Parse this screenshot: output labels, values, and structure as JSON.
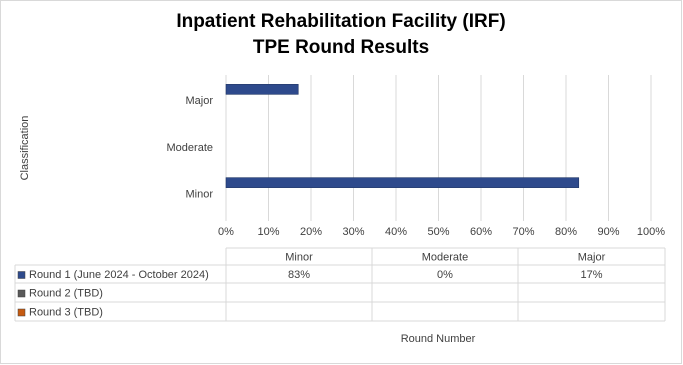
{
  "chart_data": {
    "type": "bar",
    "orientation": "horizontal",
    "title": "Inpatient Rehabilitation Facility (IRF)",
    "subtitle": "TPE Round Results",
    "y_label": "Classification",
    "x_label": "Round Number",
    "categories": [
      "Minor",
      "Moderate",
      "Major"
    ],
    "series": [
      {
        "name": "Round 1 (June 2024 - October 2024)",
        "color": "#2e4a8c",
        "values": [
          83,
          0,
          17
        ],
        "value_labels": [
          "83%",
          "0%",
          "17%"
        ]
      },
      {
        "name": "Round 2 (TBD)",
        "color": "#595959",
        "values": [
          null,
          null,
          null
        ]
      },
      {
        "name": "Round 3 (TBD)",
        "color": "#c55a11",
        "values": [
          null,
          null,
          null
        ]
      }
    ],
    "xlim": [
      0,
      100
    ],
    "xticks": [
      {
        "value": 0,
        "label": "0%"
      },
      {
        "value": 10,
        "label": "10%"
      },
      {
        "value": 20,
        "label": "20%"
      },
      {
        "value": 30,
        "label": "30%"
      },
      {
        "value": 40,
        "label": "40%"
      },
      {
        "value": 50,
        "label": "50%"
      },
      {
        "value": 60,
        "label": "60%"
      },
      {
        "value": 70,
        "label": "70%"
      },
      {
        "value": 80,
        "label": "80%"
      },
      {
        "value": 90,
        "label": "90%"
      },
      {
        "value": 100,
        "label": "100%"
      }
    ],
    "grid": true
  }
}
